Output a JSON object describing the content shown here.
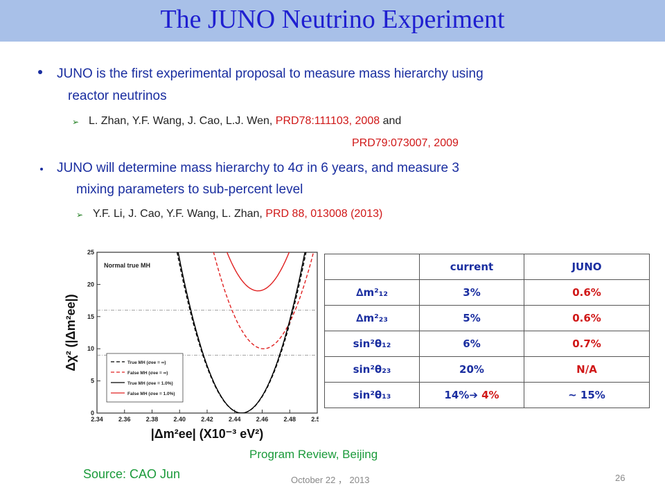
{
  "slide": {
    "title": "The JUNO Neutrino Experiment",
    "bullet1": {
      "line1": "JUNO is the first experimental proposal to measure mass hierarchy using",
      "line2": "reactor neutrinos",
      "ref1_authors": "L. Zhan, Y.F. Wang, J. Cao, L.J. Wen,",
      "ref1_cite": "PRD78:111103, 2008",
      "ref1_and": "and",
      "ref2_cite": "PRD79:073007, 2009"
    },
    "bullet2": {
      "line1": "JUNO will determine mass hierarchy to 4σ  in 6 years, and measure 3",
      "line2": "mixing parameters to sub-percent level",
      "ref_authors": "Y.F. Li, J. Cao, Y.F. Wang, L. Zhan,",
      "ref_cite": "PRD 88, 013008 (2013)"
    },
    "footer": {
      "program": "Program Review, Beijing",
      "source": "Source: CAO Jun",
      "date": "October 22 ， 2013",
      "page": "26"
    }
  },
  "table": {
    "headers": [
      "",
      "current",
      "JUNO"
    ],
    "rows": [
      {
        "param": "∆m²₁₂",
        "current": "3%",
        "juno": "0.6%"
      },
      {
        "param": "∆m²₂₃",
        "current": "5%",
        "juno": "0.6%"
      },
      {
        "param": "sin²θ₁₂",
        "current": "6%",
        "juno": "0.7%"
      },
      {
        "param": "sin²θ₂₃",
        "current": "20%",
        "juno": "N/A"
      },
      {
        "param": "sin²θ₁₃",
        "current": "14%",
        "arrow": "➔",
        "current_to": "4%",
        "juno": "~ 15%"
      }
    ]
  },
  "chart_data": {
    "type": "line",
    "xlabel": "|Δm²ee| (X10⁻³ eV²)",
    "ylabel": "Δχ² (|Δm²ee|)",
    "annotation": "Normal true MH",
    "xlim": [
      2.34,
      2.5
    ],
    "ylim": [
      0,
      25
    ],
    "xticks": [
      "2.34",
      "2.36",
      "2.38",
      "2.40",
      "2.42",
      "2.44",
      "2.46",
      "2.48",
      "2.50"
    ],
    "yticks": [
      "0",
      "5",
      "10",
      "15",
      "20",
      "25"
    ],
    "hlines": [
      16,
      9
    ],
    "legend": {
      "position": "bottom-left",
      "entries": [
        "True MH (σee = ∞)",
        "False MH (σee = ∞)",
        "True MH (σee = 1.0%)",
        "False MH (σee = 1.0%)"
      ]
    },
    "series": [
      {
        "name": "True MH (σee = ∞)",
        "style": "dashed",
        "color": "#000000",
        "min_x": 2.445,
        "min_y": 0,
        "curv": 11400
      },
      {
        "name": "False MH (σee = ∞)",
        "style": "dashed",
        "color": "#e02020",
        "min_x": 2.461,
        "min_y": 10,
        "curv": 11400
      },
      {
        "name": "True MH (σee = 1.0%)",
        "style": "solid",
        "color": "#000000",
        "min_x": 2.445,
        "min_y": 0,
        "curv": 11800
      },
      {
        "name": "False MH (σee = 1.0%)",
        "style": "solid",
        "color": "#e02020",
        "min_x": 2.457,
        "min_y": 19,
        "curv": 11800
      }
    ]
  }
}
